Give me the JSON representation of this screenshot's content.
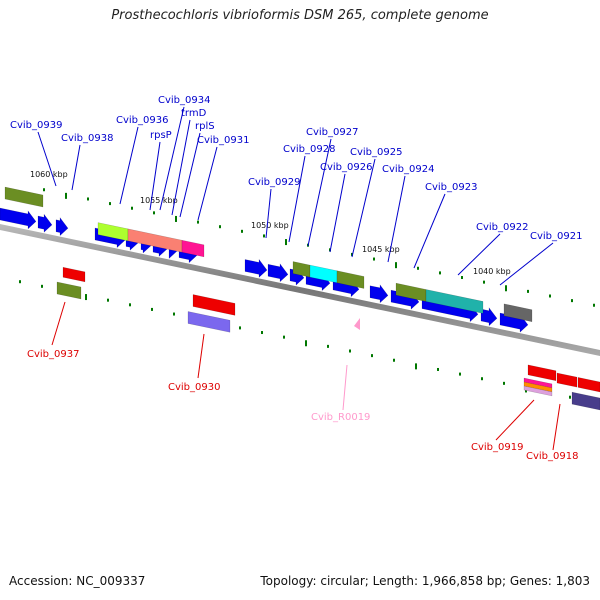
{
  "title": "Prosthecochloris vibrioformis DSM 265, complete genome",
  "footer": {
    "accession": "Accession: NC_009337",
    "summary": "Topology: circular; Length: 1,966,858 bp; Genes: 1,803"
  },
  "colors": {
    "forward_label": "#0000cc",
    "reverse_label": "#dd0000",
    "rna_label": "#ff99cc",
    "backbone": "#888888",
    "tick": "#007700",
    "cds_blue": "#0000ee",
    "cds_red": "#ee0000"
  },
  "scale_labels": [
    "1060 kbp",
    "1055 kbp",
    "1050 kbp",
    "1045 kbp",
    "1040 kbp"
  ],
  "forward_labels": [
    "Cvib_0939",
    "Cvib_0938",
    "Cvib_0936",
    "rpsP",
    "Cvib_0934",
    "trmD",
    "rplS",
    "Cvib_0931",
    "Cvib_0929",
    "Cvib_0928",
    "Cvib_0927",
    "Cvib_0926",
    "Cvib_0925",
    "Cvib_0924",
    "Cvib_0923",
    "Cvib_0922",
    "Cvib_0921"
  ],
  "reverse_labels": [
    "Cvib_0937",
    "Cvib_0930",
    "Cvib_R0019",
    "Cvib_0919",
    "Cvib_0918"
  ]
}
